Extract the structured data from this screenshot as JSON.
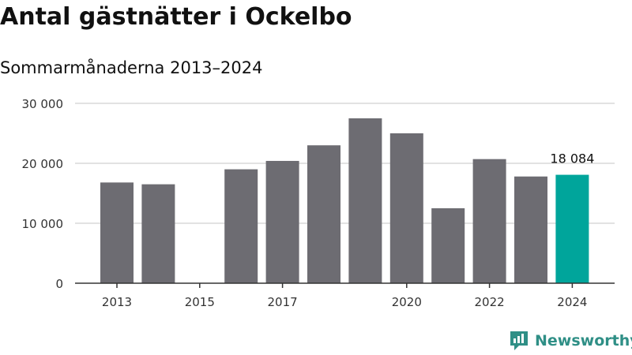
{
  "header": {
    "title": "Antal gästnätter i Ockelbo",
    "subtitle": "Sommarmånaderna 2013–2024"
  },
  "brand": {
    "name": "Newsworthy",
    "icon": "newsworthy-logo-icon",
    "color": "#2f8f86"
  },
  "colors": {
    "bar": "#6d6c72",
    "highlight": "#00a59b",
    "grid": "#d9d9d9",
    "axis": "#333333",
    "tick_text": "#333333"
  },
  "chart_data": {
    "type": "bar",
    "categories": [
      "2013",
      "2014",
      "2015",
      "2016",
      "2017",
      "2018",
      "2019",
      "2020",
      "2021",
      "2022",
      "2023",
      "2024"
    ],
    "values": [
      16800,
      16500,
      null,
      19000,
      20400,
      23000,
      27500,
      25000,
      12500,
      20700,
      17800,
      18084
    ],
    "highlight_index": 11,
    "annotations": [
      {
        "category": "2024",
        "label": "18 084"
      }
    ],
    "x_tick_labels": [
      "2013",
      "2015",
      "2017",
      "2020",
      "2022",
      "2024"
    ],
    "y_ticks": [
      0,
      10000,
      20000,
      30000
    ],
    "y_tick_labels": [
      "0",
      "10 000",
      "20 000",
      "30 000"
    ],
    "ylim": [
      0,
      30000
    ],
    "grid": true,
    "xlabel": "",
    "ylabel": ""
  }
}
